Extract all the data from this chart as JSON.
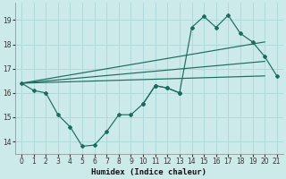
{
  "xlabel": "Humidex (Indice chaleur)",
  "xlim": [
    -0.5,
    21.5
  ],
  "ylim": [
    13.5,
    19.7
  ],
  "yticks": [
    14,
    15,
    16,
    17,
    18,
    19
  ],
  "xticks": [
    0,
    1,
    2,
    3,
    4,
    5,
    6,
    7,
    8,
    9,
    10,
    11,
    12,
    13,
    14,
    15,
    16,
    17,
    18,
    19,
    20,
    21
  ],
  "bg_color": "#cceaea",
  "line_color": "#1e6b5e",
  "grid_color": "#b0dada",
  "main_line": {
    "x": [
      0,
      1,
      2,
      3,
      4,
      5,
      6,
      7,
      8,
      9,
      10,
      11,
      12,
      13
    ],
    "y": [
      16.4,
      16.1,
      16.0,
      15.1,
      14.6,
      13.8,
      13.85,
      14.4,
      15.1,
      15.1,
      15.55,
      16.3,
      16.2,
      16.0
    ]
  },
  "upper_line": {
    "x": [
      0,
      20
    ],
    "y": [
      16.4,
      18.1
    ]
  },
  "middle_line": {
    "x": [
      0,
      20
    ],
    "y": [
      16.4,
      17.3
    ]
  },
  "lower_line": {
    "x": [
      0,
      20
    ],
    "y": [
      16.4,
      16.7
    ]
  },
  "spike_line": {
    "x": [
      10,
      11,
      12,
      13,
      14,
      15,
      16,
      17,
      18,
      19,
      20,
      21
    ],
    "y": [
      15.55,
      16.3,
      16.2,
      16.0,
      18.7,
      19.15,
      18.7,
      19.2,
      18.45,
      18.1,
      17.5,
      16.7
    ]
  }
}
